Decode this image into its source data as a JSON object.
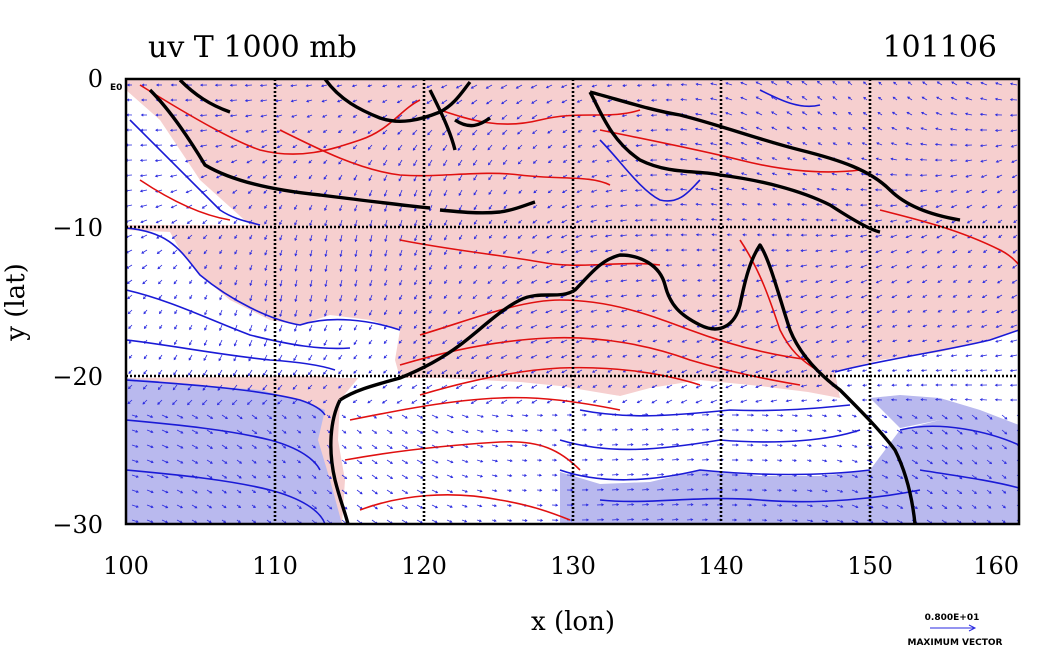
{
  "title": "uv T 1000 mb",
  "date_label": "101106",
  "corner_label": "E0",
  "x_axis": {
    "label": "x (lon)",
    "ticks": [
      "100",
      "110",
      "120",
      "130",
      "140",
      "150",
      "160"
    ],
    "range": [
      100,
      160
    ]
  },
  "y_axis": {
    "label": "y (lat)",
    "ticks": [
      "0",
      "−10",
      "−20",
      "−30"
    ],
    "range": [
      -30,
      0
    ]
  },
  "reference_vector": {
    "value": "0.800E+01",
    "label": "MAXIMUM VECTOR"
  },
  "colors": {
    "warm_fill": "#f6cfcf",
    "cool_fill": "#b9b9ee",
    "warm_contour": "#e01010",
    "cool_contour": "#1a1ad6",
    "vector": "#2a2ae0",
    "coastline": "#000000"
  }
}
